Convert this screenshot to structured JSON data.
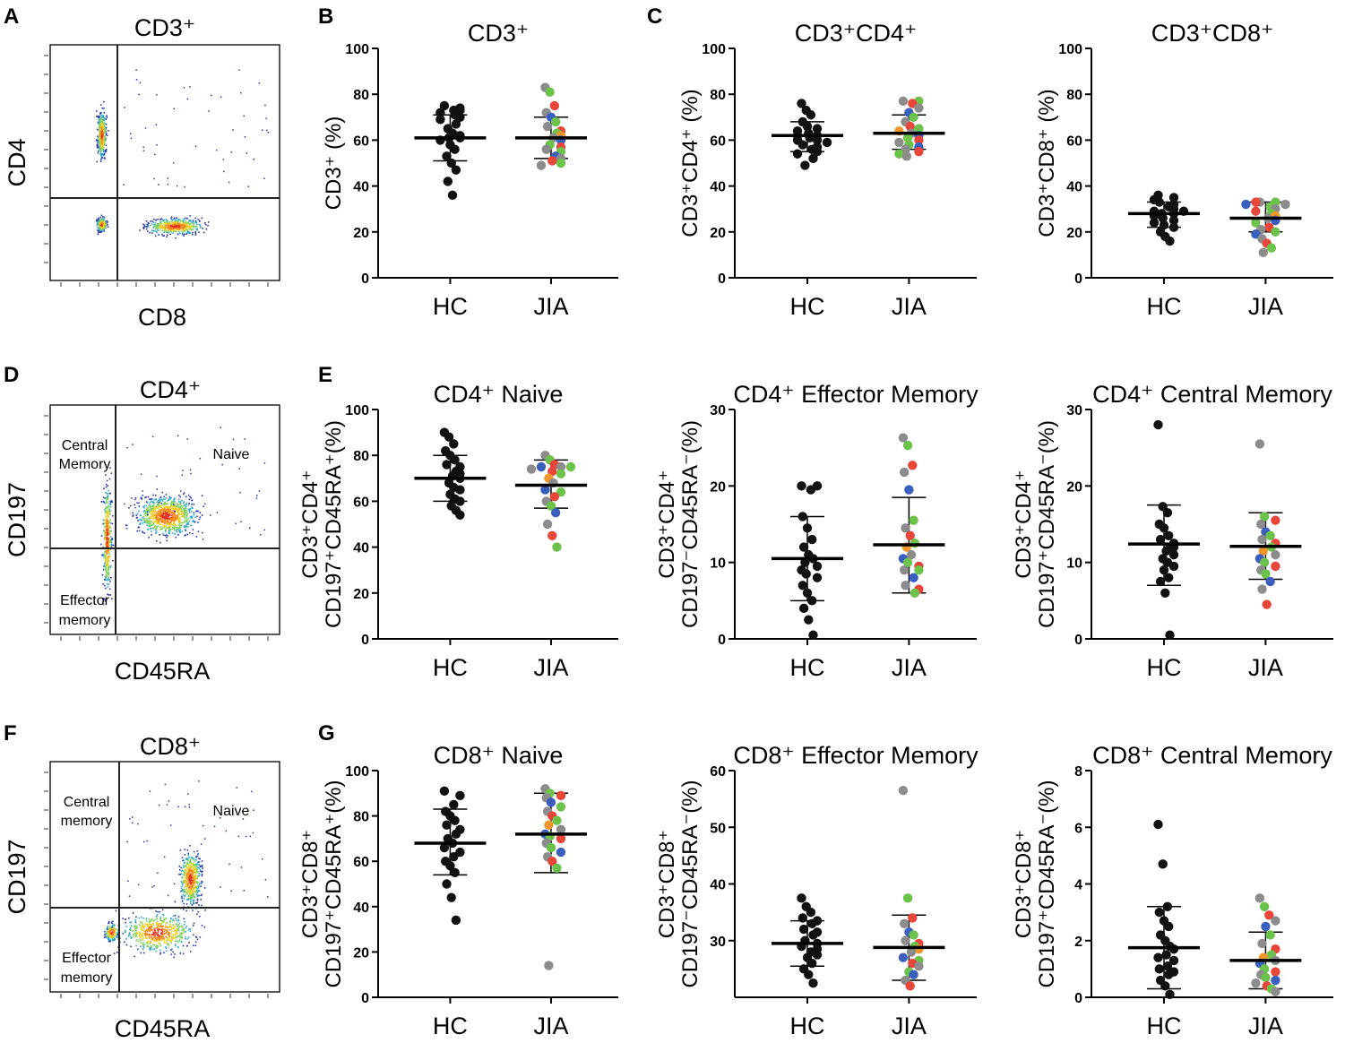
{
  "figure": {
    "panel_labels": [
      "A",
      "B",
      "C",
      "D",
      "E",
      "F",
      "G"
    ]
  },
  "flow_panels": [
    {
      "title": "CD3⁺",
      "x_label": "CD8",
      "y_label": "CD4",
      "gate_labels": []
    },
    {
      "title": "CD4⁺",
      "x_label": "CD45RA",
      "y_label": "CD197",
      "gate_labels": [
        "Central",
        "Memory",
        "Naive",
        "Effector",
        "memory"
      ]
    },
    {
      "title": "CD8⁺",
      "x_label": "CD45RA",
      "y_label": "CD197",
      "gate_labels": [
        "Central",
        "memory",
        "Naive",
        "Effector",
        "memory"
      ]
    }
  ],
  "colors": {
    "hc": "#111111",
    "jia_palette": [
      "#8c8c8c",
      "#6cc24a",
      "#e8463a",
      "#3a5fbf",
      "#f0962a"
    ]
  },
  "chart_data": [
    {
      "type": "scatter",
      "panel": "B",
      "title": "CD3⁺",
      "ylabel": [
        "CD3⁺ (%)"
      ],
      "categories": [
        "HC",
        "JIA"
      ],
      "ylim": [
        0,
        100
      ],
      "yticks": [
        "0",
        "20",
        "40",
        "60",
        "80",
        "100"
      ],
      "series": [
        {
          "name": "HC",
          "mean": 61,
          "sd_low": 51,
          "sd_high": 71,
          "points": [
            75,
            74,
            73,
            73,
            72,
            71,
            70,
            69,
            67,
            65,
            63,
            62,
            61,
            61,
            60,
            58,
            56,
            53,
            50,
            47,
            42,
            36
          ]
        },
        {
          "name": "JIA",
          "mean": 61,
          "sd_low": 52,
          "sd_high": 70,
          "points": [
            83,
            81,
            75,
            72,
            70,
            68,
            66,
            64,
            63,
            62,
            61,
            60,
            58,
            57,
            56,
            55,
            53,
            52,
            51,
            50,
            49
          ]
        }
      ]
    },
    {
      "type": "scatter",
      "panel": "C",
      "title": "CD3⁺CD4⁺",
      "ylabel": [
        "CD3⁺CD4⁺ (%)"
      ],
      "categories": [
        "HC",
        "JIA"
      ],
      "ylim": [
        0,
        100
      ],
      "yticks": [
        "0",
        "20",
        "40",
        "60",
        "80",
        "100"
      ],
      "series": [
        {
          "name": "HC",
          "mean": 62,
          "sd_low": 55,
          "sd_high": 68,
          "points": [
            76,
            73,
            71,
            68,
            66,
            65,
            64,
            63,
            62,
            62,
            61,
            60,
            60,
            59,
            58,
            57,
            56,
            55,
            54,
            52,
            49
          ]
        },
        {
          "name": "JIA",
          "mean": 63,
          "sd_low": 56,
          "sd_high": 71,
          "points": [
            77,
            77,
            76,
            74,
            72,
            70,
            68,
            66,
            65,
            64,
            63,
            62,
            61,
            60,
            59,
            58,
            57,
            56,
            55,
            54,
            53
          ]
        }
      ]
    },
    {
      "type": "scatter",
      "panel": "C",
      "title": "CD3⁺CD8⁺",
      "ylabel": [
        "CD3⁺CD8⁺ (%)"
      ],
      "categories": [
        "HC",
        "JIA"
      ],
      "ylim": [
        0,
        100
      ],
      "yticks": [
        "0",
        "20",
        "40",
        "60",
        "80",
        "100"
      ],
      "series": [
        {
          "name": "HC",
          "mean": 28,
          "sd_low": 22,
          "sd_high": 33,
          "points": [
            36,
            35,
            34,
            33,
            32,
            31,
            30,
            29,
            29,
            28,
            28,
            27,
            26,
            25,
            24,
            23,
            22,
            20,
            18,
            16
          ]
        },
        {
          "name": "JIA",
          "mean": 26,
          "sd_low": 20,
          "sd_high": 33,
          "points": [
            33,
            33,
            33,
            32,
            32,
            31,
            30,
            29,
            28,
            27,
            26,
            25,
            24,
            22,
            21,
            20,
            19,
            17,
            15,
            13,
            11
          ]
        }
      ]
    },
    {
      "type": "scatter",
      "panel": "E",
      "title": "CD4⁺ Naive",
      "ylabel": [
        "CD3⁺CD4⁺",
        "CD197⁺CD45RA⁺(%)"
      ],
      "categories": [
        "HC",
        "JIA"
      ],
      "ylim": [
        0,
        100
      ],
      "yticks": [
        "0",
        "20",
        "40",
        "60",
        "80",
        "100"
      ],
      "series": [
        {
          "name": "HC",
          "mean": 70,
          "sd_low": 60,
          "sd_high": 80,
          "points": [
            90,
            88,
            85,
            82,
            80,
            78,
            76,
            75,
            73,
            72,
            71,
            70,
            68,
            66,
            65,
            63,
            61,
            60,
            58,
            56,
            54
          ]
        },
        {
          "name": "JIA",
          "mean": 67,
          "sd_low": 57,
          "sd_high": 78,
          "points": [
            80,
            78,
            76,
            75,
            75,
            75,
            74,
            73,
            72,
            70,
            68,
            65,
            64,
            62,
            60,
            58,
            55,
            50,
            45,
            40
          ]
        }
      ]
    },
    {
      "type": "scatter",
      "panel": "E",
      "title": "CD4⁺ Effector Memory",
      "ylabel": [
        "CD3⁺CD4⁺",
        "CD197⁻CD45RA⁻(%)"
      ],
      "categories": [
        "HC",
        "JIA"
      ],
      "ylim": [
        0,
        30
      ],
      "yticks": [
        "0",
        "10",
        "20",
        "30"
      ],
      "series": [
        {
          "name": "HC",
          "mean": 10.5,
          "sd_low": 5,
          "sd_high": 16,
          "points": [
            20,
            20,
            19.5,
            16,
            14.5,
            13,
            12,
            11,
            10.5,
            10,
            9.5,
            9,
            8.5,
            8,
            7,
            6,
            5,
            4,
            2.5,
            0.5
          ]
        },
        {
          "name": "JIA",
          "mean": 12.3,
          "sd_low": 6,
          "sd_high": 18.5,
          "points": [
            26.3,
            25.3,
            22.7,
            21.8,
            19.5,
            15.5,
            14.5,
            13.5,
            12.5,
            12,
            11,
            10.5,
            10,
            9.5,
            9,
            9,
            8,
            7,
            6.5,
            6
          ]
        }
      ]
    },
    {
      "type": "scatter",
      "panel": "E",
      "title": "CD4⁺ Central Memory",
      "ylabel": [
        "CD3⁺CD4⁺",
        "CD197⁺CD45RA⁻(%)"
      ],
      "categories": [
        "HC",
        "JIA"
      ],
      "ylim": [
        0,
        30
      ],
      "yticks": [
        "0",
        "10",
        "20",
        "30"
      ],
      "series": [
        {
          "name": "HC",
          "mean": 12.4,
          "sd_low": 7,
          "sd_high": 17.5,
          "points": [
            28,
            17.3,
            16.5,
            15,
            14.5,
            13.5,
            13,
            12.5,
            12,
            12,
            11.5,
            11,
            10.5,
            10,
            9.5,
            9,
            8,
            7.5,
            6,
            0.5
          ]
        },
        {
          "name": "JIA",
          "mean": 12.1,
          "sd_low": 7.8,
          "sd_high": 16.5,
          "points": [
            25.5,
            16,
            15.5,
            15,
            14,
            13.5,
            13,
            12.5,
            12,
            11.5,
            11,
            10.5,
            10,
            9.5,
            9,
            8.5,
            7.5,
            6.5,
            4.5
          ]
        }
      ]
    },
    {
      "type": "scatter",
      "panel": "G",
      "title": "CD8⁺ Naive",
      "ylabel": [
        "CD3⁺CD8⁺",
        "CD197⁺CD45RA⁺(%)"
      ],
      "categories": [
        "HC",
        "JIA"
      ],
      "ylim": [
        0,
        100
      ],
      "yticks": [
        "0",
        "20",
        "40",
        "60",
        "80",
        "100"
      ],
      "series": [
        {
          "name": "HC",
          "mean": 68,
          "sd_low": 54,
          "sd_high": 83,
          "points": [
            91,
            89,
            85,
            82,
            80,
            78,
            76,
            74,
            72,
            70,
            68,
            66,
            64,
            62,
            60,
            58,
            55,
            50,
            44,
            34
          ]
        },
        {
          "name": "JIA",
          "mean": 72,
          "sd_low": 55,
          "sd_high": 90,
          "points": [
            92,
            90,
            89,
            88,
            86,
            84,
            82,
            80,
            78,
            76,
            74,
            72,
            71,
            70,
            68,
            66,
            64,
            62,
            60,
            57,
            14
          ]
        }
      ]
    },
    {
      "type": "scatter",
      "panel": "G",
      "title": "CD8⁺ Effector Memory",
      "ylabel": [
        "CD3⁺CD8⁺",
        "CD197⁻CD45RA⁻(%)"
      ],
      "categories": [
        "HC",
        "JIA"
      ],
      "ylim": [
        20,
        60
      ],
      "yticks": [
        "30",
        "40",
        "50",
        "60"
      ],
      "series": [
        {
          "name": "HC",
          "mean": 29.5,
          "sd_low": 25.5,
          "sd_high": 33.5,
          "points": [
            37.5,
            36,
            35,
            34,
            33.5,
            33,
            32,
            31.5,
            31,
            30,
            29.5,
            29,
            28.5,
            28,
            27.5,
            27,
            26,
            25,
            24,
            22.5
          ]
        },
        {
          "name": "JIA",
          "mean": 28.8,
          "sd_low": 23,
          "sd_high": 34.5,
          "points": [
            56.5,
            37.5,
            34,
            33,
            31.5,
            31,
            30,
            29.5,
            29,
            28.5,
            28,
            27,
            26.5,
            26,
            25.5,
            24.5,
            24,
            23,
            22
          ]
        }
      ]
    },
    {
      "type": "scatter",
      "panel": "G",
      "title": "CD8⁺ Central Memory",
      "ylabel": [
        "CD3⁺CD8⁺",
        "CD197⁺CD45RA⁻(%)"
      ],
      "categories": [
        "HC",
        "JIA"
      ],
      "ylim": [
        0,
        8
      ],
      "yticks": [
        "0",
        "2",
        "4",
        "6",
        "8"
      ],
      "series": [
        {
          "name": "HC",
          "mean": 1.75,
          "sd_low": 0.3,
          "sd_high": 3.2,
          "points": [
            6.1,
            4.7,
            3.2,
            3.0,
            2.7,
            2.5,
            2.2,
            2.0,
            1.8,
            1.7,
            1.5,
            1.4,
            1.3,
            1.1,
            1.0,
            0.9,
            0.8,
            0.6,
            0.4,
            0.1
          ]
        },
        {
          "name": "JIA",
          "mean": 1.3,
          "sd_low": 0.3,
          "sd_high": 2.3,
          "points": [
            3.5,
            3.2,
            2.9,
            2.7,
            2.5,
            2.2,
            1.9,
            1.7,
            1.5,
            1.4,
            1.3,
            1.2,
            1.0,
            0.9,
            0.8,
            0.7,
            0.6,
            0.5,
            0.4,
            0.3,
            0.2
          ]
        }
      ]
    }
  ]
}
